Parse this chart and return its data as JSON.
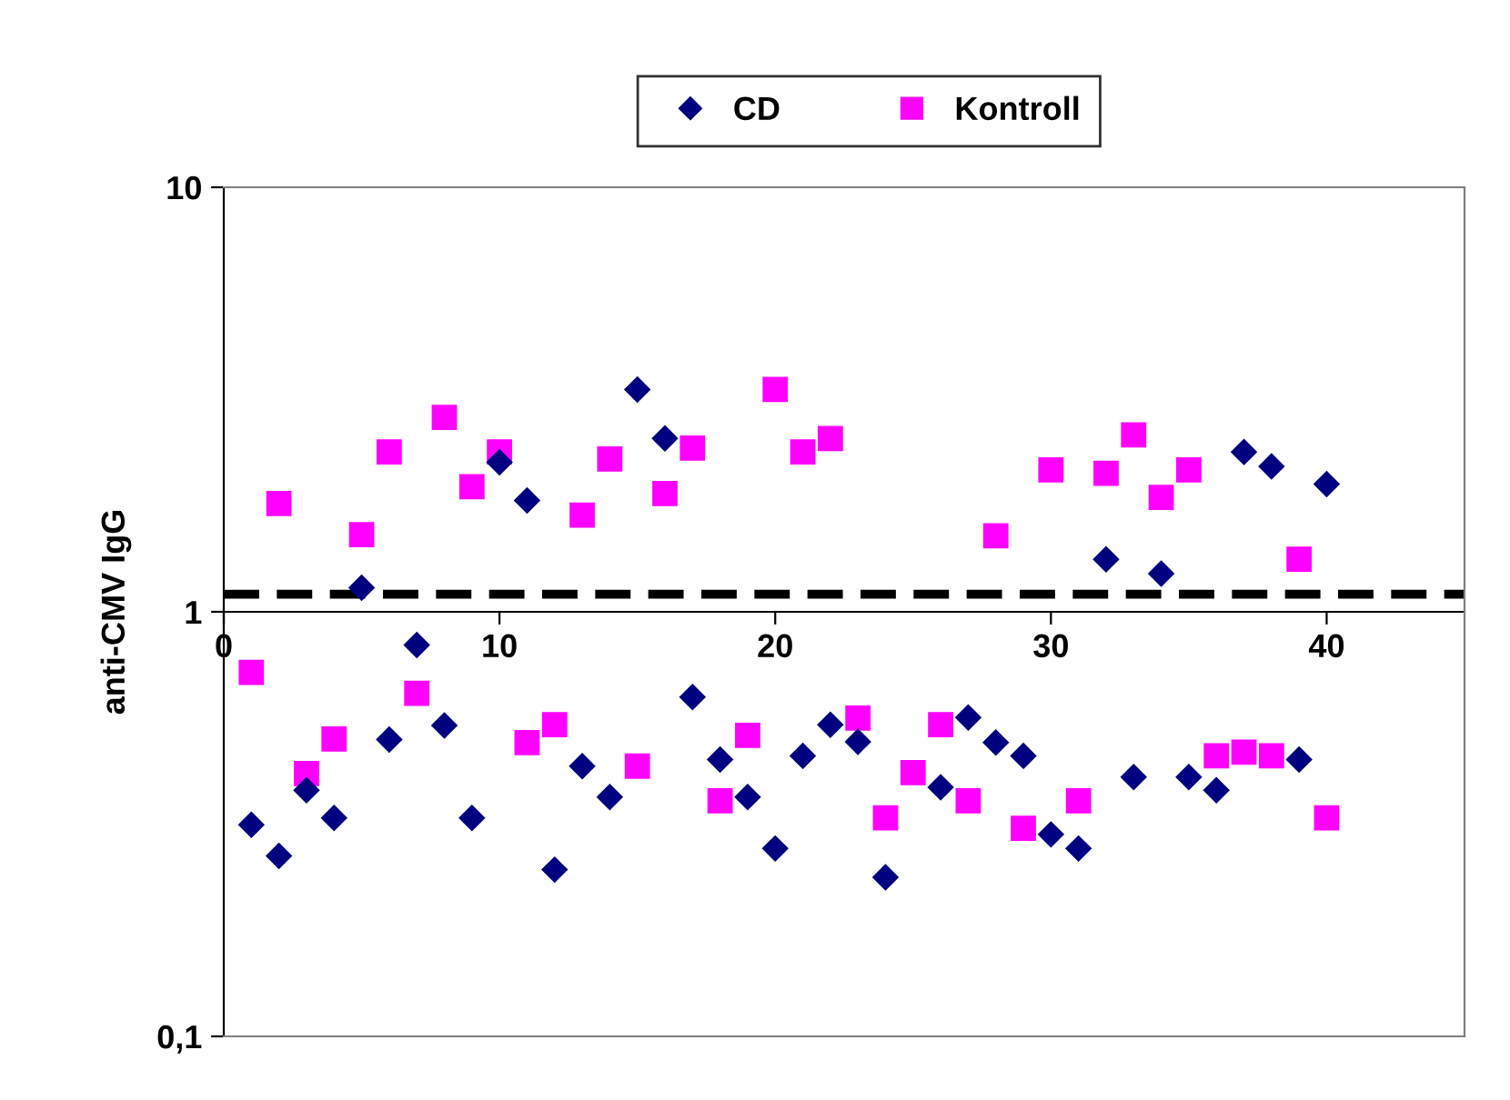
{
  "chart_data": {
    "type": "scatter",
    "ylabel": "anti-CMV IgG",
    "log": "y",
    "xlim": [
      0,
      45
    ],
    "xticks": [
      0,
      10,
      20,
      30,
      40
    ],
    "ylim": [
      0.1,
      10
    ],
    "yticks": [
      {
        "value": 0.1,
        "label": "0,1"
      },
      1,
      10
    ],
    "grid": false,
    "legend": "top",
    "ref_lines": [
      {
        "axis": "y",
        "value": 1.1,
        "color": "#000000",
        "line_style": "dashed"
      }
    ],
    "series": [
      {
        "name": "CD",
        "color": "#000080",
        "marker": "diamond",
        "x": [
          1,
          2,
          3,
          4,
          5,
          6,
          7,
          8,
          9,
          10,
          11,
          12,
          13,
          14,
          15,
          16,
          17,
          18,
          19,
          20,
          21,
          22,
          23,
          24,
          26,
          27,
          28,
          29,
          30,
          31,
          32,
          33,
          34,
          35,
          36,
          37,
          38,
          39,
          40
        ],
        "values": [
          0.315,
          0.266,
          0.38,
          0.327,
          1.14,
          0.5,
          0.835,
          0.54,
          0.327,
          2.25,
          1.83,
          0.247,
          0.433,
          0.366,
          3.34,
          2.56,
          0.63,
          0.449,
          0.366,
          0.277,
          0.458,
          0.542,
          0.494,
          0.237,
          0.386,
          0.564,
          0.492,
          0.458,
          0.299,
          0.277,
          1.33,
          0.408,
          1.23,
          0.408,
          0.38,
          2.38,
          2.2,
          0.449,
          2.0
        ]
      },
      {
        "name": "Kontroll",
        "color": "#ff00ff",
        "marker": "square",
        "x": [
          1,
          2,
          3,
          4,
          5,
          6,
          7,
          8,
          9,
          10,
          11,
          12,
          13,
          14,
          15,
          16,
          17,
          18,
          19,
          20,
          21,
          22,
          23,
          24,
          25,
          26,
          27,
          28,
          29,
          30,
          31,
          32,
          33,
          34,
          35,
          36,
          37,
          38,
          39,
          40
        ],
        "values": [
          0.72,
          1.8,
          0.416,
          0.502,
          1.52,
          2.38,
          0.643,
          2.87,
          1.97,
          2.38,
          0.492,
          0.542,
          1.69,
          2.29,
          0.433,
          1.9,
          2.43,
          0.359,
          0.512,
          3.34,
          2.38,
          2.56,
          0.562,
          0.327,
          0.418,
          0.542,
          0.359,
          1.51,
          0.309,
          2.16,
          0.359,
          2.12,
          2.61,
          1.86,
          2.16,
          0.458,
          0.467,
          0.458,
          1.33,
          0.327
        ]
      }
    ]
  }
}
